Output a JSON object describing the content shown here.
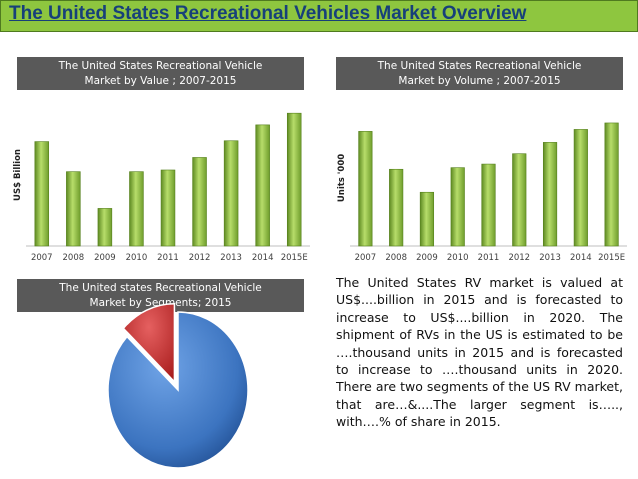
{
  "header": {
    "title": "The United States Recreational Vehicles Market Overview"
  },
  "panels": {
    "value": {
      "title_line1": "The United States Recreational Vehicle",
      "title_line2": "Market by Value ; 2007-2015"
    },
    "volume": {
      "title_line1": "The United States Recreational Vehicle",
      "title_line2": "Market by Volume ; 2007-2015"
    },
    "segments": {
      "title_line1": "The United states Recreational Vehicle",
      "title_line2": "Market by Segments; 2015"
    }
  },
  "description": "The United States RV market is valued at US$....billion in 2015 and is forecasted to increase to US$....billion in 2020. The shipment of RVs in the US is estimated to be ….thousand units in 2015 and is forecasted to increase to ….thousand units in 2020. There are two segments of the US RV market, that are…&....The larger segment is….., with….% of share in 2015.",
  "colors": {
    "title_bg": "#8ec63f",
    "title_text": "#17407a",
    "panel_head": "#595959",
    "bar": "#86b43a",
    "pie_large": "#3e78c4",
    "pie_small": "#cc2a2a"
  },
  "chart_data": [
    {
      "id": "value",
      "type": "bar",
      "title": "The United States Recreational Vehicle Market by Value ; 2007-2015",
      "ylabel": "US$ Billion",
      "xlabel": "",
      "categories": [
        "2007",
        "2008",
        "2009",
        "2010",
        "2011",
        "2012",
        "2013",
        "2014",
        "2015E"
      ],
      "values": [
        12.5,
        8.9,
        4.5,
        8.9,
        9.1,
        10.6,
        12.6,
        14.5,
        15.9
      ],
      "ylim": [
        0,
        17
      ],
      "grid": false
    },
    {
      "id": "volume",
      "type": "bar",
      "title": "The United States Recreational Vehicle Market by Volume ; 2007-2015",
      "ylabel": "Units '000",
      "xlabel": "",
      "categories": [
        "2007",
        "2008",
        "2009",
        "2010",
        "2011",
        "2012",
        "2013",
        "2014",
        "2015E"
      ],
      "values": [
        354,
        237,
        166,
        242,
        253,
        285,
        320,
        360,
        380
      ],
      "ylim": [
        0,
        420
      ],
      "grid": false
    },
    {
      "id": "segments",
      "type": "pie",
      "title": "The United states Recreational Vehicle Market by Segments; 2015",
      "values": [
        87,
        13
      ]
    }
  ]
}
